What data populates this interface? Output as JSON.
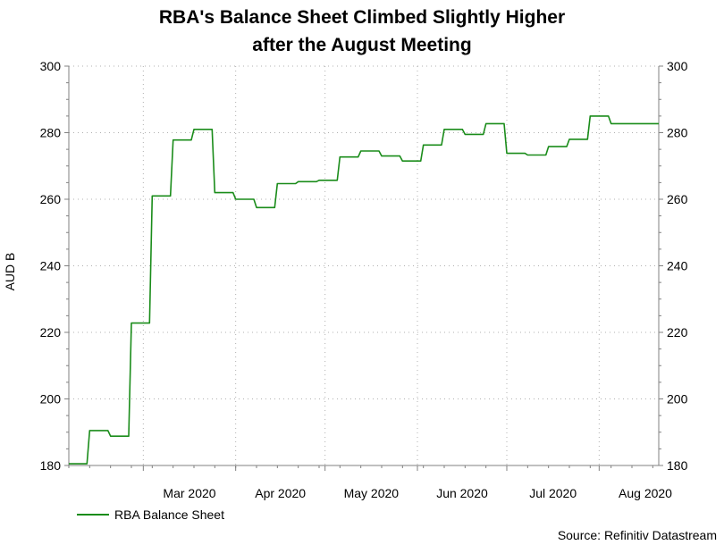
{
  "title_line1": "RBA's Balance Sheet Climbed Slightly Higher",
  "title_line2": "after the August Meeting",
  "source": "Source: Refinitiv Datastream",
  "colors": {
    "line": "#1a8c1a",
    "grid": "#b0b0b0",
    "axis": "#808080"
  },
  "chart_data": {
    "type": "line",
    "title": "RBA's Balance Sheet Climbed Slightly Higher after the August Meeting",
    "xlabel": "",
    "ylabel": "AUD B",
    "ylim": [
      180,
      300
    ],
    "yticks": [
      "180",
      "200",
      "220",
      "240",
      "260",
      "280",
      "300"
    ],
    "xlim": [
      "2020-02-05",
      "2020-08-21"
    ],
    "x_tick_labels": [
      "Mar 2020",
      "Apr 2020",
      "May 2020",
      "Jun 2020",
      "Jul 2020",
      "Aug 2020"
    ],
    "x_tick_dates": [
      "2020-03-01",
      "2020-04-01",
      "2020-05-01",
      "2020-06-01",
      "2020-07-01",
      "2020-08-01"
    ],
    "grid": true,
    "y_axis_both_sides": true,
    "legend_position": "bottom-left",
    "series": [
      {
        "name": "RBA Balance Sheet",
        "x": [
          "2020-02-05",
          "2020-02-12",
          "2020-02-19",
          "2020-02-26",
          "2020-03-04",
          "2020-03-11",
          "2020-03-18",
          "2020-03-25",
          "2020-04-01",
          "2020-04-08",
          "2020-04-15",
          "2020-04-22",
          "2020-04-29",
          "2020-05-06",
          "2020-05-13",
          "2020-05-20",
          "2020-05-27",
          "2020-06-03",
          "2020-06-10",
          "2020-06-17",
          "2020-06-24",
          "2020-07-01",
          "2020-07-08",
          "2020-07-15",
          "2020-07-22",
          "2020-07-29",
          "2020-08-05",
          "2020-08-12",
          "2020-08-19",
          "2020-08-21"
        ],
        "values": [
          180.5,
          190.5,
          188.8,
          222.8,
          261.0,
          277.8,
          281.0,
          262.0,
          260.0,
          257.5,
          264.7,
          265.3,
          265.7,
          272.7,
          274.5,
          273.0,
          271.5,
          276.3,
          281.0,
          279.5,
          282.7,
          273.8,
          273.3,
          275.8,
          278.0,
          285.0,
          282.7,
          282.7,
          282.7,
          282.7
        ]
      }
    ]
  },
  "legend": {
    "label": "RBA Balance Sheet"
  }
}
